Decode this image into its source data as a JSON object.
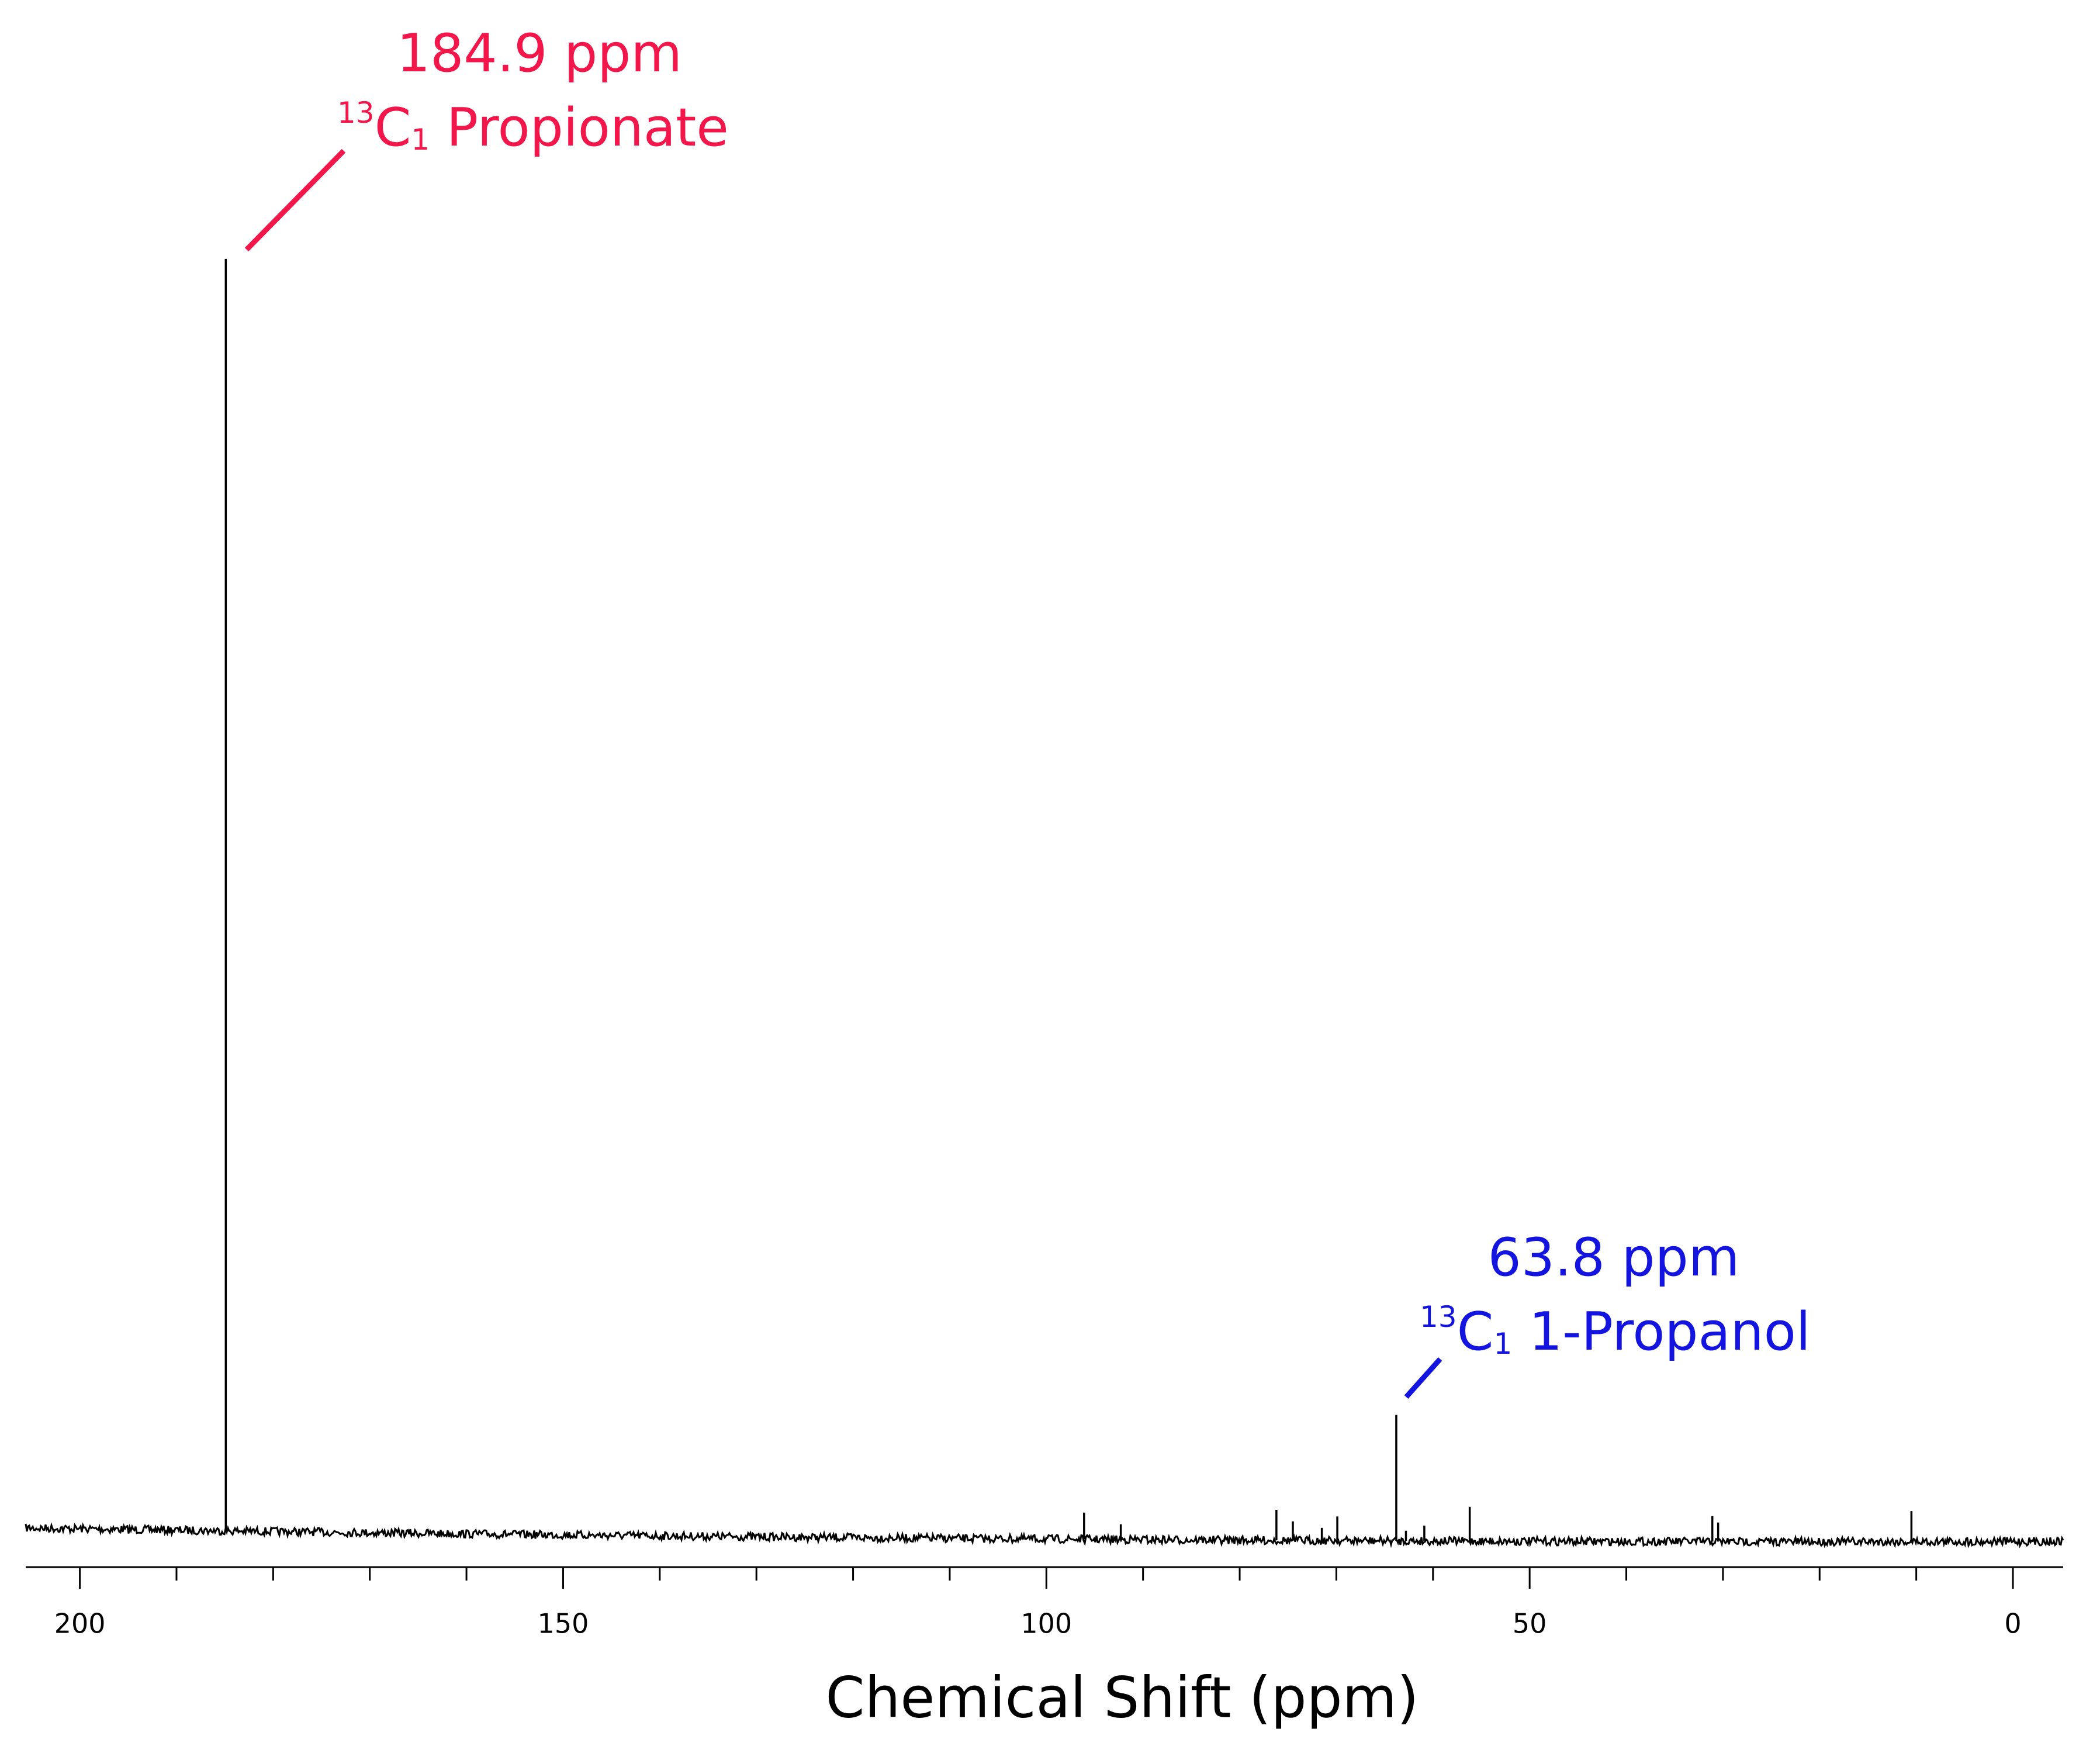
{
  "chart_data": {
    "type": "spectrum",
    "xlabel": "Chemical Shift (ppm)",
    "xlim": [
      205.6,
      -5.2
    ],
    "xticks": [
      200,
      150,
      100,
      50,
      0
    ],
    "xticks_minor": [
      190,
      180,
      170,
      160,
      140,
      130,
      120,
      110,
      90,
      80,
      70,
      60,
      40,
      30,
      20,
      10
    ],
    "ylim": [
      0,
      100
    ],
    "color": "#000000",
    "peaks": {
      "x": [
        184.9,
        96.1,
        92.3,
        76.2,
        74.5,
        71.5,
        69.9,
        63.8,
        62.8,
        60.9,
        56.2,
        31.1,
        30.5,
        10.5
      ],
      "values": [
        100,
        2.1,
        1.2,
        2.4,
        1.5,
        1.0,
        1.9,
        9.9,
        0.8,
        1.2,
        2.7,
        2.0,
        1.5,
        2.4
      ]
    },
    "annotations": [
      {
        "shift": "184.9 ppm",
        "isotope": "13",
        "element": "C",
        "position": "1",
        "compound": " Propionate",
        "color": "#f2164b",
        "x": 184.9
      },
      {
        "shift": "63.8 ppm",
        "isotope": "13",
        "element": "C",
        "position": "1",
        "compound": " 1-Propanol",
        "color": "#1414e0",
        "x": 63.8
      }
    ]
  }
}
